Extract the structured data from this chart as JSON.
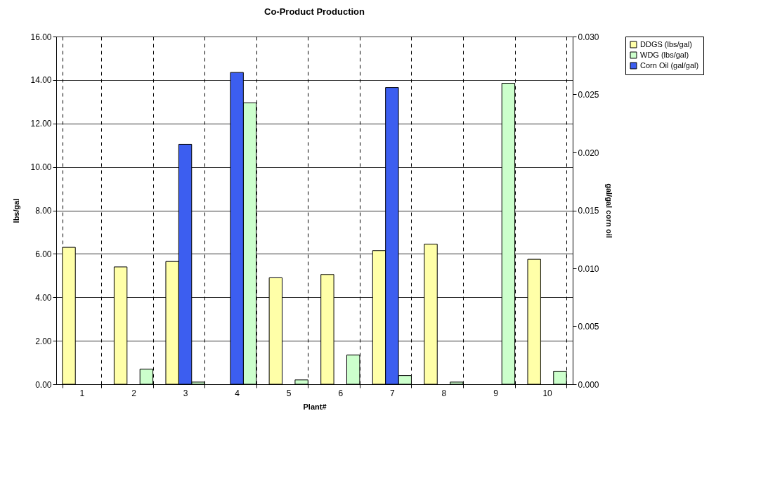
{
  "chart_data": {
    "type": "bar",
    "title": "Co-Product Production",
    "xlabel": "Plant#",
    "ylabel": "lbs/gal",
    "y2label": "gal/gal corn oil",
    "categories": [
      "1",
      "2",
      "3",
      "4",
      "5",
      "6",
      "7",
      "8",
      "9",
      "10"
    ],
    "series": [
      {
        "name": "DDGS (lbs/gal)",
        "color": "#ffffa8",
        "values": [
          6.3,
          5.4,
          5.65,
          null,
          4.9,
          5.05,
          6.15,
          6.45,
          null,
          5.75
        ]
      },
      {
        "name": "WDG (lbs/gal)",
        "color": "#ccffcc",
        "values": [
          null,
          0.7,
          0.1,
          12.95,
          0.2,
          1.35,
          0.4,
          0.1,
          13.85,
          0.6
        ]
      },
      {
        "name": "Corn Oil (gal/gal)",
        "color": "#3c5ef0",
        "axis": "y2",
        "values": [
          null,
          null,
          0.0207,
          0.0269,
          null,
          null,
          0.0256,
          null,
          null,
          null
        ]
      }
    ],
    "ylim": [
      0,
      16
    ],
    "yticks": [
      {
        "value": 0,
        "label": "0.00"
      },
      {
        "value": 2,
        "label": "2.00"
      },
      {
        "value": 4,
        "label": "4.00"
      },
      {
        "value": 6,
        "label": "6.00"
      },
      {
        "value": 8,
        "label": "8.00"
      },
      {
        "value": 10,
        "label": "10.00"
      },
      {
        "value": 12,
        "label": "12.00"
      },
      {
        "value": 14,
        "label": "14.00"
      },
      {
        "value": 16,
        "label": "16.00"
      }
    ],
    "y2lim": [
      0,
      0.03
    ],
    "y2ticks": [
      {
        "value": 0,
        "label": "0.000"
      },
      {
        "value": 0.005,
        "label": "0.005"
      },
      {
        "value": 0.01,
        "label": "0.010"
      },
      {
        "value": 0.015,
        "label": "0.015"
      },
      {
        "value": 0.02,
        "label": "0.020"
      },
      {
        "value": 0.025,
        "label": "0.025"
      },
      {
        "value": 0.03,
        "label": "0.030"
      }
    ],
    "grid": true,
    "legend": "right"
  }
}
